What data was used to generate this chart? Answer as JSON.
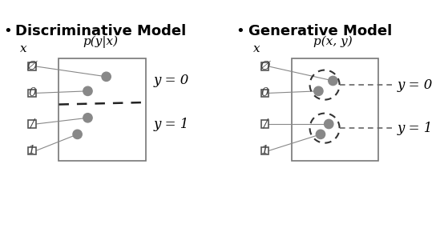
{
  "title_left": "Discriminative Model",
  "title_right": "Generative Model",
  "bullet": "•",
  "label_left": "p(y|x)",
  "label_right": "p(x, y)",
  "x_label": "x",
  "y0_label": "y = 0",
  "y1_label": "y = 1",
  "digit_labels": [
    "Ø",
    "0",
    "/",
    "1"
  ],
  "bg_color": "#ffffff",
  "dot_color": "#888888",
  "line_color": "#888888",
  "title_fontsize": 13,
  "label_fontsize": 11,
  "annotation_fontsize": 12
}
